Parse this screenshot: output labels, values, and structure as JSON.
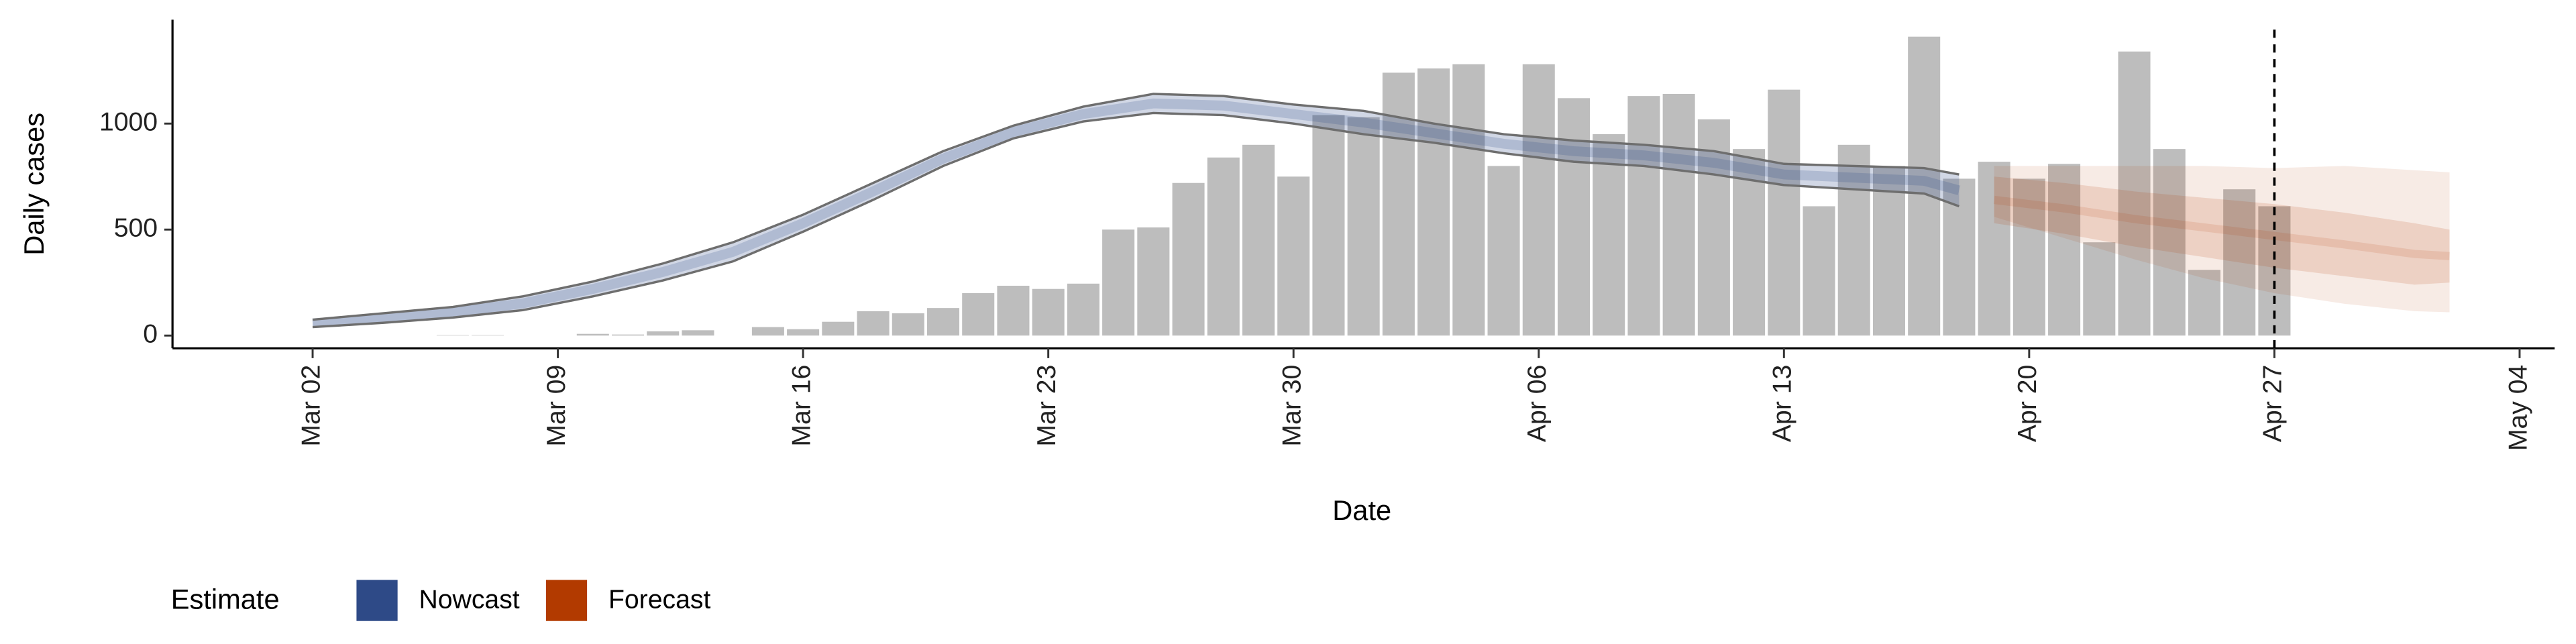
{
  "chart_data": {
    "type": "bar",
    "x_label": "Date",
    "y_label": "Daily cases",
    "xlim": [
      "02-26",
      "05-05"
    ],
    "xticks": [
      {
        "value": "03-02",
        "label": "Mar 02"
      },
      {
        "value": "03-09",
        "label": "Mar 09"
      },
      {
        "value": "03-16",
        "label": "Mar 16"
      },
      {
        "value": "03-23",
        "label": "Mar 23"
      },
      {
        "value": "03-30",
        "label": "Mar 30"
      },
      {
        "value": "04-06",
        "label": "Apr 06"
      },
      {
        "value": "04-13",
        "label": "Apr 13"
      },
      {
        "value": "04-20",
        "label": "Apr 20"
      },
      {
        "value": "04-27",
        "label": "Apr 27"
      },
      {
        "value": "05-04",
        "label": "May 04"
      }
    ],
    "ylim": [
      -60,
      1490
    ],
    "yticks": [
      0,
      500,
      1000
    ],
    "reference_line": "04-27",
    "bars": {
      "color": "#bdbdbd",
      "x": [
        "03-06",
        "03-07",
        "03-10",
        "03-11",
        "03-12",
        "03-13",
        "03-15",
        "03-16",
        "03-17",
        "03-18",
        "03-19",
        "03-20",
        "03-21",
        "03-22",
        "03-23",
        "03-24",
        "03-25",
        "03-26",
        "03-27",
        "03-28",
        "03-29",
        "03-30",
        "03-31",
        "04-01",
        "04-02",
        "04-03",
        "04-04",
        "04-05",
        "04-06",
        "04-07",
        "04-08",
        "04-09",
        "04-10",
        "04-11",
        "04-12",
        "04-13",
        "04-14",
        "04-15",
        "04-16",
        "04-17",
        "04-18",
        "04-19",
        "04-20",
        "04-21",
        "04-22",
        "04-23",
        "04-24",
        "04-25",
        "04-26",
        "04-27"
      ],
      "values": [
        2,
        2,
        8,
        5,
        20,
        25,
        40,
        30,
        65,
        115,
        105,
        130,
        200,
        235,
        220,
        245,
        500,
        510,
        720,
        840,
        900,
        750,
        1040,
        1030,
        1240,
        1260,
        1280,
        800,
        1280,
        1120,
        950,
        1130,
        1140,
        1020,
        880,
        1160,
        610,
        900,
        800,
        1410,
        740,
        820,
        740,
        810,
        440,
        1340,
        880,
        310,
        690,
        610
      ]
    },
    "legend_title": "Estimate",
    "series": [
      {
        "name": "Nowcast",
        "color": "#2e4a87",
        "x": [
          "03-02",
          "03-04",
          "03-06",
          "03-08",
          "03-10",
          "03-12",
          "03-14",
          "03-16",
          "03-18",
          "03-20",
          "03-22",
          "03-24",
          "03-26",
          "03-28",
          "03-30",
          "04-01",
          "04-03",
          "04-05",
          "04-07",
          "04-09",
          "04-11",
          "04-13",
          "04-15",
          "04-17",
          "04-18"
        ],
        "median": [
          58,
          82,
          110,
          152,
          220,
          300,
          395,
          530,
          680,
          835,
          960,
          1045,
          1095,
          1085,
          1045,
          1005,
          955,
          905,
          870,
          850,
          815,
          760,
          745,
          730,
          685
        ],
        "lower": [
          40,
          60,
          85,
          120,
          185,
          260,
          350,
          490,
          640,
          800,
          930,
          1010,
          1050,
          1040,
          1000,
          950,
          910,
          860,
          820,
          800,
          760,
          710,
          690,
          670,
          610
        ],
        "upper": [
          75,
          105,
          135,
          185,
          255,
          340,
          440,
          570,
          720,
          870,
          990,
          1080,
          1140,
          1130,
          1090,
          1060,
          1000,
          950,
          920,
          900,
          870,
          810,
          800,
          790,
          760
        ]
      },
      {
        "name": "Forecast",
        "color": "#b23a00",
        "x": [
          "04-19",
          "04-21",
          "04-23",
          "04-25",
          "04-27",
          "04-29",
          "05-01",
          "05-02"
        ],
        "median": [
          640,
          600,
          550,
          510,
          470,
          430,
          385,
          375
        ],
        "lower50": [
          530,
          480,
          420,
          370,
          320,
          280,
          240,
          250
        ],
        "upper50": [
          750,
          720,
          680,
          650,
          620,
          580,
          530,
          500
        ],
        "lower": [
          560,
          460,
          360,
          270,
          200,
          150,
          115,
          110
        ],
        "upper": [
          800,
          800,
          800,
          800,
          790,
          800,
          780,
          770
        ]
      }
    ]
  }
}
